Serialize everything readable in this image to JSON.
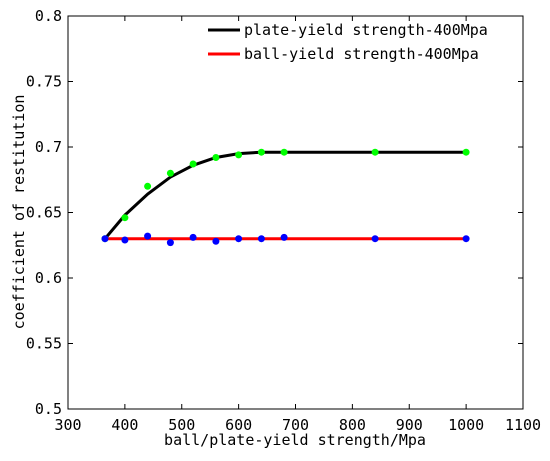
{
  "chart_data": {
    "type": "line",
    "title": "",
    "xlabel": "ball/plate-yield strength/Mpa",
    "ylabel": "coefficient of restitution",
    "xlim": [
      300,
      1100
    ],
    "ylim": [
      0.5,
      0.8
    ],
    "x_ticks": [
      300,
      400,
      500,
      600,
      700,
      800,
      900,
      1000,
      1100
    ],
    "y_ticks": [
      0.5,
      0.55,
      0.6,
      0.65,
      0.7,
      0.75,
      0.8
    ],
    "x_tick_labels": [
      "300",
      "400",
      "500",
      "600",
      "700",
      "800",
      "900",
      "1000",
      "1100"
    ],
    "y_tick_labels": [
      "0.5",
      "0.55",
      "0.6",
      "0.65",
      "0.7",
      "0.75",
      "0.8"
    ],
    "grid": false,
    "legend_position": "top-right",
    "series": [
      {
        "name": "plate-yield strength-400Mpa",
        "line_color": "#000000",
        "marker_color": "#00ff00",
        "fit_x": [
          365,
          400,
          440,
          480,
          520,
          560,
          600,
          640,
          680,
          840,
          1000
        ],
        "fit_y": [
          0.63,
          0.648,
          0.664,
          0.677,
          0.686,
          0.692,
          0.695,
          0.696,
          0.696,
          0.696,
          0.696
        ],
        "points_x": [
          365,
          400,
          440,
          480,
          520,
          560,
          600,
          640,
          680,
          840,
          1000
        ],
        "points_y": [
          0.63,
          0.646,
          0.67,
          0.68,
          0.687,
          0.692,
          0.694,
          0.696,
          0.696,
          0.696,
          0.696
        ]
      },
      {
        "name": "ball-yield strength-400Mpa",
        "line_color": "#ff0000",
        "marker_color": "#0000ff",
        "fit_x": [
          365,
          1000
        ],
        "fit_y": [
          0.63,
          0.63
        ],
        "points_x": [
          365,
          400,
          440,
          480,
          520,
          560,
          600,
          640,
          680,
          840,
          1000
        ],
        "points_y": [
          0.63,
          0.629,
          0.632,
          0.627,
          0.631,
          0.628,
          0.63,
          0.63,
          0.631,
          0.63,
          0.63
        ]
      }
    ]
  }
}
